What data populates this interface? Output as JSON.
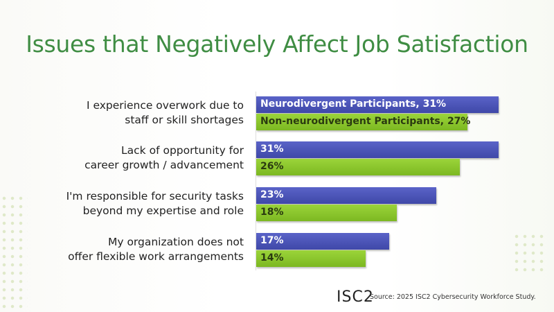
{
  "chart_data": {
    "type": "bar",
    "orientation": "horizontal",
    "title": "Issues that Negatively Affect Job Satisfaction",
    "categories": [
      [
        "I experience overwork due to",
        "staff or skill shortages"
      ],
      [
        "Lack of opportunity for",
        "career growth / advancement"
      ],
      [
        "I'm responsible for security tasks",
        "beyond my expertise and role"
      ],
      [
        "My organization does not",
        "offer flexible work arrangements"
      ]
    ],
    "series": [
      {
        "name": "Neurodivergent Participants",
        "color": "#4a52b8",
        "values": [
          31,
          31,
          23,
          17
        ],
        "labels": [
          "Neurodivergent Participants, 31%",
          "31%",
          "23%",
          "17%"
        ]
      },
      {
        "name": "Non-neurodivergent Participants",
        "color": "#8cc62c",
        "values": [
          27,
          26,
          18,
          14
        ],
        "labels": [
          "Non-neurodivergent Participants, 27%",
          "26%",
          "18%",
          "14%"
        ]
      }
    ],
    "xlim": [
      0,
      31
    ],
    "unit": "%"
  },
  "footer": {
    "logo": "ISC2",
    "source": "Source: 2025 ISC2 Cybersecurity Workforce Study."
  }
}
